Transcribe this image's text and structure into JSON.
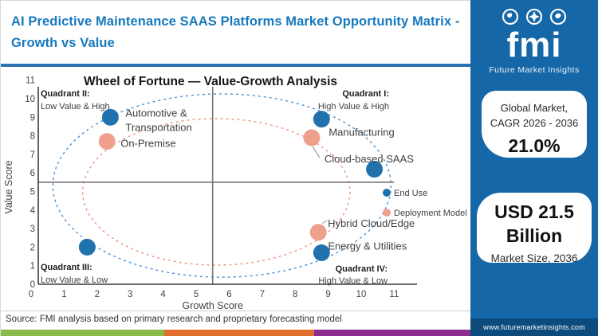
{
  "header": {
    "title": "AI Predictive Maintenance SAAS Platforms Market Opportunity Matrix - Growth vs Value"
  },
  "source": "Source: FMI analysis based on primary research and proprietary forecasting model",
  "footer_stripe": {
    "colors": [
      "#8bbc4a",
      "#e0702b",
      "#8e2d90"
    ]
  },
  "right_panel": {
    "panel_color": "#1667a7",
    "footer_color": "#0d4b7d",
    "logo": {
      "text": "fmi",
      "subtext": "Future Market Insights"
    },
    "stat_cards": [
      {
        "title_line1": "Global Market,",
        "title_line2": "CAGR 2026 - 2036",
        "value": "21.0%"
      },
      {
        "value_line1": "USD 21.5",
        "value_line2": "Billion",
        "caption": "Market Size, 2036"
      }
    ],
    "website": "www.futuremarketinsights.com"
  },
  "chart_data": {
    "type": "scatter",
    "title": "Wheel of Fortune — Value-Growth Analysis",
    "xlabel": "Growth Score",
    "ylabel": "Value Score",
    "xlim": [
      0,
      11
    ],
    "ylim": [
      0,
      11
    ],
    "x_ticks": [
      0,
      1,
      2,
      3,
      4,
      5,
      6,
      7,
      8,
      9,
      10,
      11
    ],
    "y_ticks": [
      0,
      1,
      2,
      3,
      4,
      5,
      6,
      7,
      8,
      9,
      10,
      11
    ],
    "grid": false,
    "legend_position": "right-middle",
    "quadrant_divider": {
      "x": 5.5,
      "y": 5.5
    },
    "quadrants": [
      {
        "name": "Quadrant II:",
        "desc": "Low Value & High",
        "position": "top-left"
      },
      {
        "name": "Quadrant I:",
        "desc": "High Value & High",
        "position": "top-right"
      },
      {
        "name": "Quadrant III:",
        "desc": "Low Value & Low",
        "position": "bottom-left"
      },
      {
        "name": "Quadrant IV:",
        "desc": "High Value & Low",
        "position": "bottom-right"
      }
    ],
    "legend": [
      {
        "name": "End Use",
        "color": "#2171ad"
      },
      {
        "name": "Deployment Model",
        "color": "#eea08d"
      }
    ],
    "series": [
      {
        "name": "End Use",
        "color": "#2171ad",
        "points": [
          {
            "x": 2.4,
            "y": 9.0,
            "label": "Automotive & Transportation"
          },
          {
            "x": 8.8,
            "y": 8.9,
            "label": "Manufacturing"
          },
          {
            "x": 10.4,
            "y": 6.2,
            "label": ""
          },
          {
            "x": 8.8,
            "y": 1.7,
            "label": "Energy & Utilities"
          },
          {
            "x": 1.7,
            "y": 2.0,
            "label": ""
          }
        ]
      },
      {
        "name": "Deployment Model",
        "color": "#eea08d",
        "points": [
          {
            "x": 2.3,
            "y": 7.7,
            "label": "On-Premise"
          },
          {
            "x": 8.5,
            "y": 7.9,
            "label": "Cloud-based SAAS"
          },
          {
            "x": 8.7,
            "y": 2.8,
            "label": "Hybrid Cloud/Edge"
          }
        ]
      }
    ],
    "rings": [
      {
        "name": "end-use-ring",
        "color": "#4a90d2",
        "cx": 5.78,
        "cy": 5.32,
        "rx": 5.12,
        "ry": 4.94
      },
      {
        "name": "deployment-model-ring",
        "color": "#ef9480",
        "cx": 5.61,
        "cy": 4.98,
        "rx": 4.05,
        "ry": 3.95
      }
    ]
  }
}
